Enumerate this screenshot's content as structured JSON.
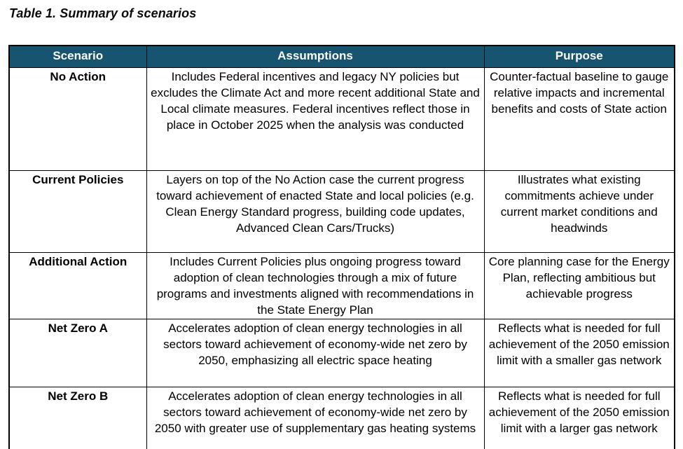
{
  "title": "Table 1. Summary of scenarios",
  "colors": {
    "header_bg": "#175470",
    "header_text": "#ffffff",
    "border": "#000000"
  },
  "table": {
    "headers": [
      "Scenario",
      "Assumptions",
      "Purpose"
    ],
    "rows": [
      {
        "scenario": "No Action",
        "assumptions": "Includes Federal incentives and legacy NY policies but excludes the Climate Act and more recent additional State and Local climate measures. Federal incentives reflect those in place in October 2025 when the analysis was conducted",
        "purpose": "Counter-factual baseline to gauge relative impacts and incremental benefits and costs of State action"
      },
      {
        "scenario": "Current Policies",
        "assumptions": "Layers on top of the No Action case the current progress toward achievement of enacted State and local policies (e.g. Clean Energy Standard progress, building code updates, Advanced Clean Cars/Trucks)",
        "purpose": "Illustrates what existing commitments achieve under current market conditions and headwinds"
      },
      {
        "scenario": "Additional Action",
        "assumptions": "Includes Current Policies plus ongoing progress toward adoption of clean technologies through a mix of future programs and investments aligned with recommendations in the State Energy Plan",
        "purpose": "Core planning case for the Energy Plan, reflecting ambitious but achievable progress"
      },
      {
        "scenario": "Net Zero A",
        "assumptions": "Accelerates adoption of clean energy technologies in all sectors toward achievement of economy-wide net zero by 2050, emphasizing all electric space heating",
        "purpose": "Reflects what is needed for full achievement of the 2050 emission limit with a smaller gas network"
      },
      {
        "scenario": "Net Zero B",
        "assumptions": "Accelerates adoption of clean energy technologies in all sectors toward achievement of economy-wide net zero by 2050 with greater use of supplementary gas heating systems",
        "purpose": "Reflects what is needed for full achievement of the 2050 emission limit with a larger gas network"
      }
    ]
  }
}
